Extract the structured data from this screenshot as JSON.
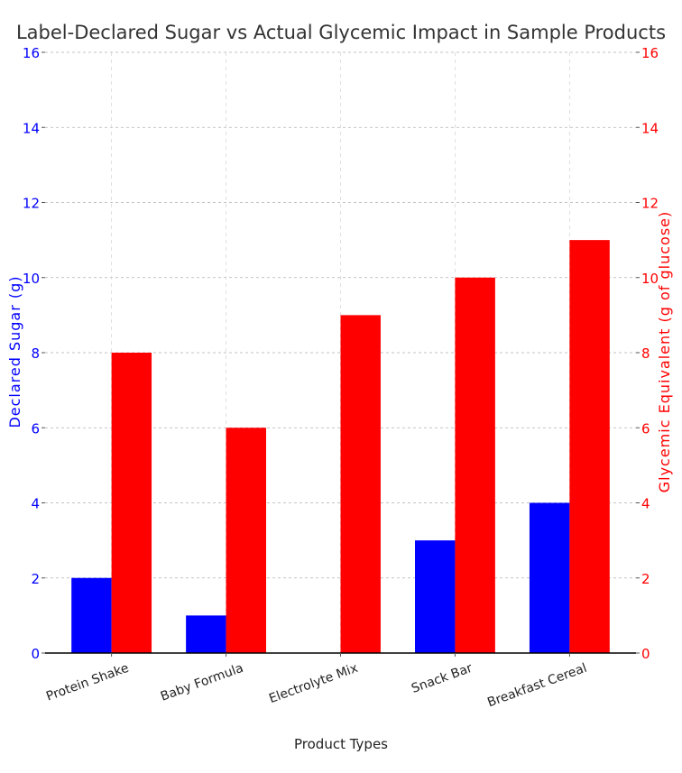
{
  "chart_data": {
    "type": "bar",
    "title": "Label-Declared Sugar vs Actual Glycemic Impact in Sample Products",
    "xlabel": "Product Types",
    "ylabel_left": "Declared Sugar (g)",
    "ylabel_right": "Glycemic Equivalent (g of glucose)",
    "categories": [
      "Protein Shake",
      "Baby Formula",
      "Electrolyte Mix",
      "Snack Bar",
      "Breakfast Cereal"
    ],
    "series": [
      {
        "name": "Declared Sugar (g)",
        "axis": "left",
        "color": "#0000ff",
        "values": [
          2,
          1,
          0,
          3,
          4
        ]
      },
      {
        "name": "Glycemic Equivalent (g of glucose)",
        "axis": "right",
        "color": "#ff0000",
        "values": [
          8,
          6,
          9,
          10,
          11
        ]
      }
    ],
    "ylim_left": [
      0,
      16
    ],
    "ylim_right": [
      0,
      16
    ],
    "yticks": [
      0,
      2,
      4,
      6,
      8,
      10,
      12,
      14,
      16
    ],
    "grid": true,
    "legend": "none"
  }
}
